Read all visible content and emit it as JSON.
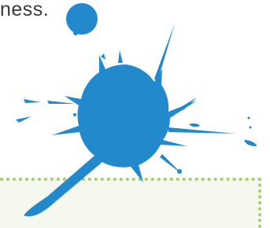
{
  "text": "ness."
}
